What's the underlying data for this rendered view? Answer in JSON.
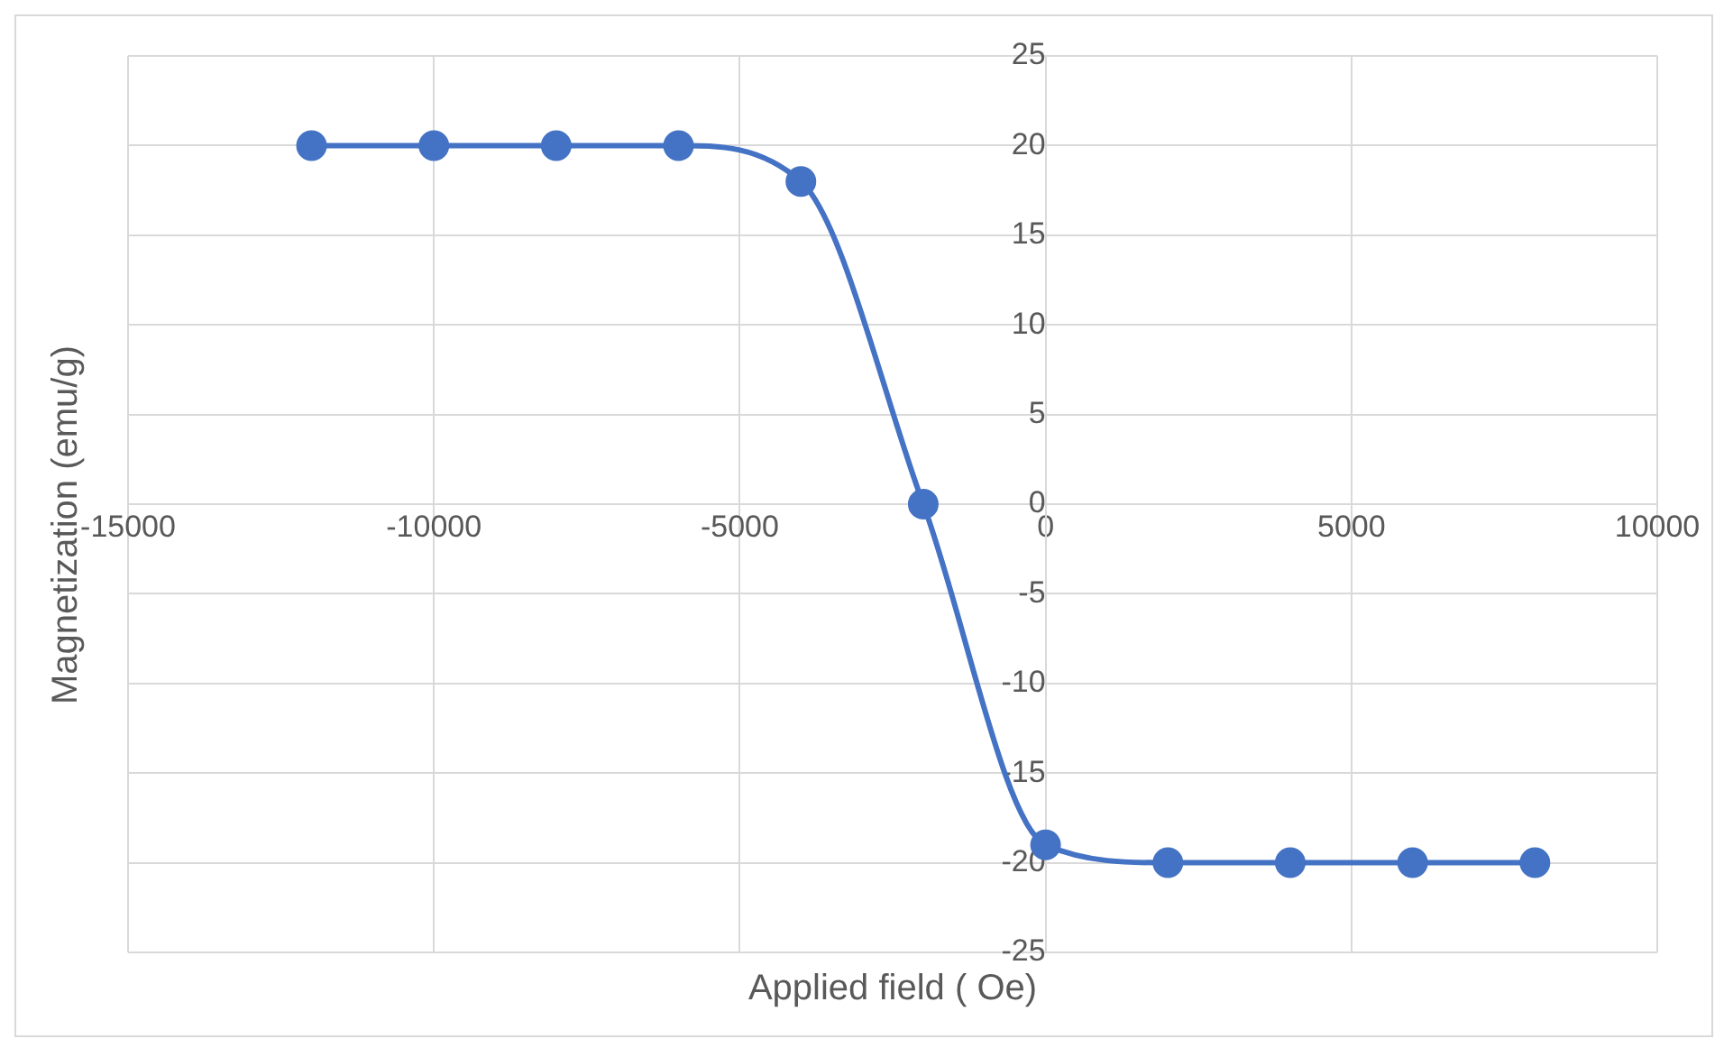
{
  "chart_data": {
    "type": "line",
    "xlabel": "Applied field ( Oe)",
    "ylabel": "Magnetization (emu/g)",
    "x": [
      -12000,
      -10000,
      -8000,
      -6000,
      -4000,
      -2000,
      0,
      2000,
      4000,
      6000,
      8000
    ],
    "series": [
      {
        "color": "#4472c4",
        "values": [
          20,
          20,
          20,
          20,
          18,
          0,
          -19,
          -20,
          -20,
          -20,
          -20
        ]
      }
    ],
    "xlim": [
      -15000,
      10000
    ],
    "xticks": [
      -15000,
      -10000,
      -5000,
      0,
      5000,
      10000
    ],
    "ylim": [
      -25,
      25
    ],
    "yticks": [
      -25,
      -20,
      -15,
      -10,
      -5,
      0,
      5,
      10,
      15,
      20,
      25
    ],
    "grid": true,
    "marker": "circle",
    "line_style": "solid",
    "legend": false
  }
}
